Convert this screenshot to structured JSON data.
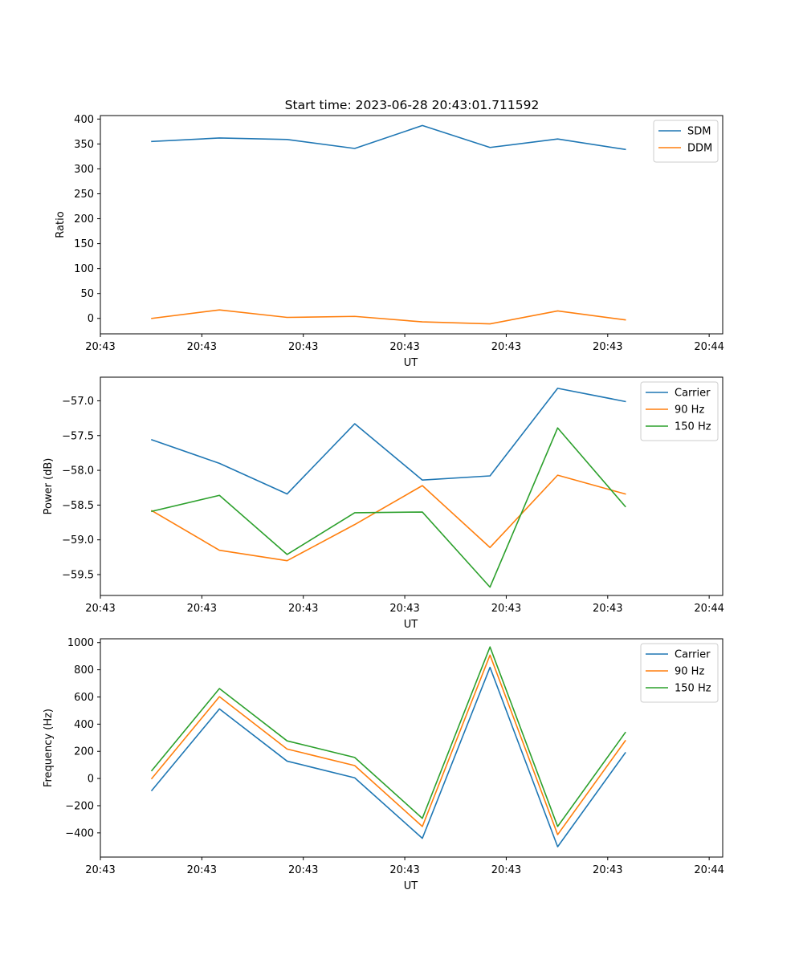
{
  "title": "Start time: 2023-06-28 20:43:01.711592",
  "colors": {
    "c0": "#1f77b4",
    "c1": "#ff7f0e",
    "c2": "#2ca02c"
  },
  "chart_data": [
    {
      "type": "line",
      "title": "Start time: 2023-06-28 20:43:01.711592",
      "xlabel": "UT",
      "ylabel": "Ratio",
      "x": [
        0,
        1,
        2,
        3,
        4,
        5,
        6,
        7
      ],
      "xlim": [
        -0.76,
        8.44
      ],
      "xticks": [
        -0.76,
        0.74,
        2.24,
        3.74,
        5.24,
        6.74,
        8.24
      ],
      "xticklabels": [
        "20:43",
        "20:43",
        "20:43",
        "20:43",
        "20:43",
        "20:43",
        "20:44"
      ],
      "ylim": [
        -31,
        407
      ],
      "yticks": [
        0,
        50,
        100,
        150,
        200,
        250,
        300,
        350,
        400
      ],
      "yticklabels": [
        "0",
        "50",
        "100",
        "150",
        "200",
        "250",
        "300",
        "350",
        "400"
      ],
      "legend": "top-right",
      "series": [
        {
          "name": "SDM",
          "color": "#1f77b4",
          "values": [
            355,
            362,
            359,
            341,
            387,
            343,
            360,
            339
          ]
        },
        {
          "name": "DDM",
          "color": "#ff7f0e",
          "values": [
            0,
            17,
            2,
            4,
            -7,
            -11,
            15,
            -3
          ]
        }
      ]
    },
    {
      "type": "line",
      "title": "",
      "xlabel": "UT",
      "ylabel": "Power (dB)",
      "x": [
        0,
        1,
        2,
        3,
        4,
        5,
        6,
        7
      ],
      "xlim": [
        -0.76,
        8.44
      ],
      "xticks": [
        -0.76,
        0.74,
        2.24,
        3.74,
        5.24,
        6.74,
        8.24
      ],
      "xticklabels": [
        "20:43",
        "20:43",
        "20:43",
        "20:43",
        "20:43",
        "20:43",
        "20:44"
      ],
      "ylim": [
        -59.8,
        -56.66
      ],
      "yticks": [
        -59.5,
        -59.0,
        -58.5,
        -58.0,
        -57.5,
        -57.0
      ],
      "yticklabels": [
        "−59.5",
        "−59.0",
        "−58.5",
        "−58.0",
        "−57.5",
        "−57.0"
      ],
      "legend": "top-right",
      "series": [
        {
          "name": "Carrier",
          "color": "#1f77b4",
          "values": [
            -57.56,
            -57.9,
            -58.34,
            -57.33,
            -58.14,
            -58.08,
            -56.82,
            -57.01
          ]
        },
        {
          "name": "90 Hz",
          "color": "#ff7f0e",
          "values": [
            -58.58,
            -59.15,
            -59.3,
            -58.78,
            -58.22,
            -59.11,
            -58.07,
            -58.34
          ]
        },
        {
          "name": "150 Hz",
          "color": "#2ca02c",
          "values": [
            -58.59,
            -58.36,
            -59.21,
            -58.61,
            -58.6,
            -59.68,
            -57.39,
            -58.52
          ]
        }
      ]
    },
    {
      "type": "line",
      "title": "",
      "xlabel": "UT",
      "ylabel": "Frequency (Hz)",
      "x": [
        0,
        1,
        2,
        3,
        4,
        5,
        6,
        7
      ],
      "xlim": [
        -0.76,
        8.44
      ],
      "xticks": [
        -0.76,
        0.74,
        2.24,
        3.74,
        5.24,
        6.74,
        8.24
      ],
      "xticklabels": [
        "20:43",
        "20:43",
        "20:43",
        "20:43",
        "20:43",
        "20:43",
        "20:44"
      ],
      "ylim": [
        -578,
        1028
      ],
      "yticks": [
        -400,
        -200,
        0,
        200,
        400,
        600,
        800,
        1000
      ],
      "yticklabels": [
        "−400",
        "−200",
        "0",
        "200",
        "400",
        "600",
        "800",
        "1000"
      ],
      "legend": "top-right",
      "series": [
        {
          "name": "Carrier",
          "color": "#1f77b4",
          "values": [
            -88,
            512,
            128,
            5,
            -440,
            818,
            -502,
            189
          ]
        },
        {
          "name": "90 Hz",
          "color": "#ff7f0e",
          "values": [
            0,
            602,
            217,
            95,
            -353,
            908,
            -413,
            278
          ]
        },
        {
          "name": "150 Hz",
          "color": "#2ca02c",
          "values": [
            58,
            662,
            277,
            155,
            -293,
            968,
            -353,
            338
          ]
        }
      ]
    }
  ]
}
